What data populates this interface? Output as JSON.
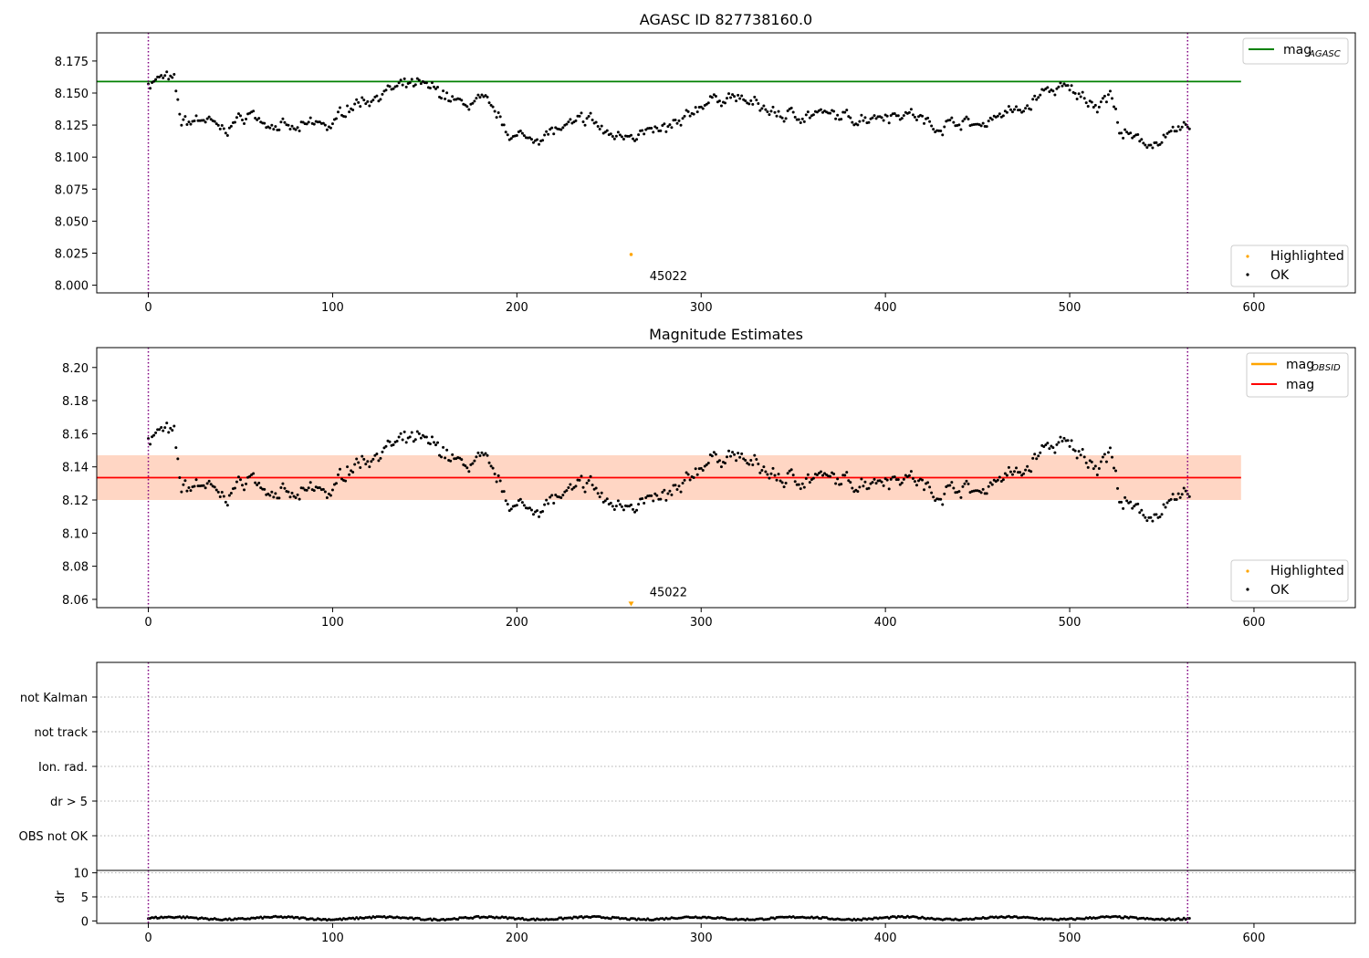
{
  "chart_data": [
    {
      "type": "scatter",
      "title": "AGASC ID 827738160.0",
      "xlim": [
        -28,
        655
      ],
      "ylim": [
        7.994,
        8.197
      ],
      "xticks": [
        0,
        100,
        200,
        300,
        400,
        500,
        600
      ],
      "yticks": [
        8.0,
        8.025,
        8.05,
        8.075,
        8.1,
        8.125,
        8.15,
        8.175
      ],
      "ytick_decimals": 3,
      "vlines": [
        0,
        564
      ],
      "hline": {
        "name": "mag_AGASC",
        "y": 8.159,
        "x_start": -28,
        "x_end": 593,
        "color": "#008000"
      },
      "legend_top": {
        "position": "top-right",
        "entries": [
          {
            "label": "mag",
            "sub": "AGASC",
            "color": "#008000"
          }
        ]
      },
      "legend_bottom": {
        "position": "lower-right",
        "entries": [
          {
            "label": "Highlighted",
            "color": "#ffa500"
          },
          {
            "label": "OK",
            "color": "#000000"
          }
        ]
      },
      "highlight": {
        "x": 262,
        "y": 8.024,
        "marker": "dot",
        "color": "#ffa500"
      },
      "annotation": {
        "text": "45022",
        "x": 272,
        "y": 8.004
      },
      "ok_series": {
        "name": "OK",
        "n": 566,
        "x_range": [
          0,
          565
        ],
        "approx_mean": 8.133,
        "approx_min": 8.104,
        "approx_max": 8.169
      }
    },
    {
      "type": "scatter",
      "title": "Magnitude Estimates",
      "xlim": [
        -28,
        655
      ],
      "ylim": [
        8.055,
        8.212
      ],
      "xticks": [
        0,
        100,
        200,
        300,
        400,
        500,
        600
      ],
      "yticks": [
        8.06,
        8.08,
        8.1,
        8.12,
        8.14,
        8.16,
        8.18,
        8.2
      ],
      "ytick_decimals": 2,
      "vlines": [
        0,
        564
      ],
      "hline": {
        "name": "mag",
        "y": 8.1335,
        "x_start": -28,
        "x_end": 593,
        "color": "#ff0000"
      },
      "bands": [
        {
          "name": "mag_OBSID",
          "y0": 8.12,
          "y1": 8.147,
          "x_start": -28,
          "x_end": 593,
          "color": "#ffa500"
        },
        {
          "name": "mag",
          "y0": 8.12,
          "y1": 8.147,
          "x_start": -28,
          "x_end": 593,
          "color": "#ff0000"
        }
      ],
      "legend_top": {
        "position": "top-right",
        "entries": [
          {
            "label": "mag",
            "sub": "OBSID",
            "color": "#ffa500"
          },
          {
            "label": "mag",
            "sub": "",
            "color": "#ff0000"
          }
        ]
      },
      "legend_bottom": {
        "position": "lower-right",
        "entries": [
          {
            "label": "Highlighted",
            "color": "#ffa500"
          },
          {
            "label": "OK",
            "color": "#000000"
          }
        ]
      },
      "highlight": {
        "x": 262,
        "y": 8.057,
        "marker": "triangle-down",
        "color": "#ffa500"
      },
      "annotation": {
        "text": "45022",
        "x": 272,
        "y": 8.058
      },
      "ok_series": {
        "name": "OK",
        "n": 566,
        "x_range": [
          0,
          565
        ],
        "approx_mean": 8.133,
        "approx_min": 8.104,
        "approx_max": 8.169
      }
    },
    {
      "type": "scatter",
      "title": "",
      "xlim": [
        -28,
        655
      ],
      "vlines": [
        0,
        564
      ],
      "categories": [
        "OBS not OK",
        "dr > 5",
        "Ion. rad.",
        "not track",
        "not Kalman"
      ],
      "flags": [],
      "grid": "horizontal dotted"
    },
    {
      "type": "scatter",
      "title": "",
      "ylabel": "dr",
      "xlim": [
        -28,
        655
      ],
      "ylim": [
        -0.5,
        10.5
      ],
      "xticks": [
        0,
        100,
        200,
        300,
        400,
        500,
        600
      ],
      "yticks": [
        0,
        5,
        10
      ],
      "vlines": [
        0,
        564
      ],
      "series": [
        {
          "name": "dr",
          "n": 566,
          "approx_range": [
            0.1,
            1.3
          ]
        }
      ]
    }
  ]
}
